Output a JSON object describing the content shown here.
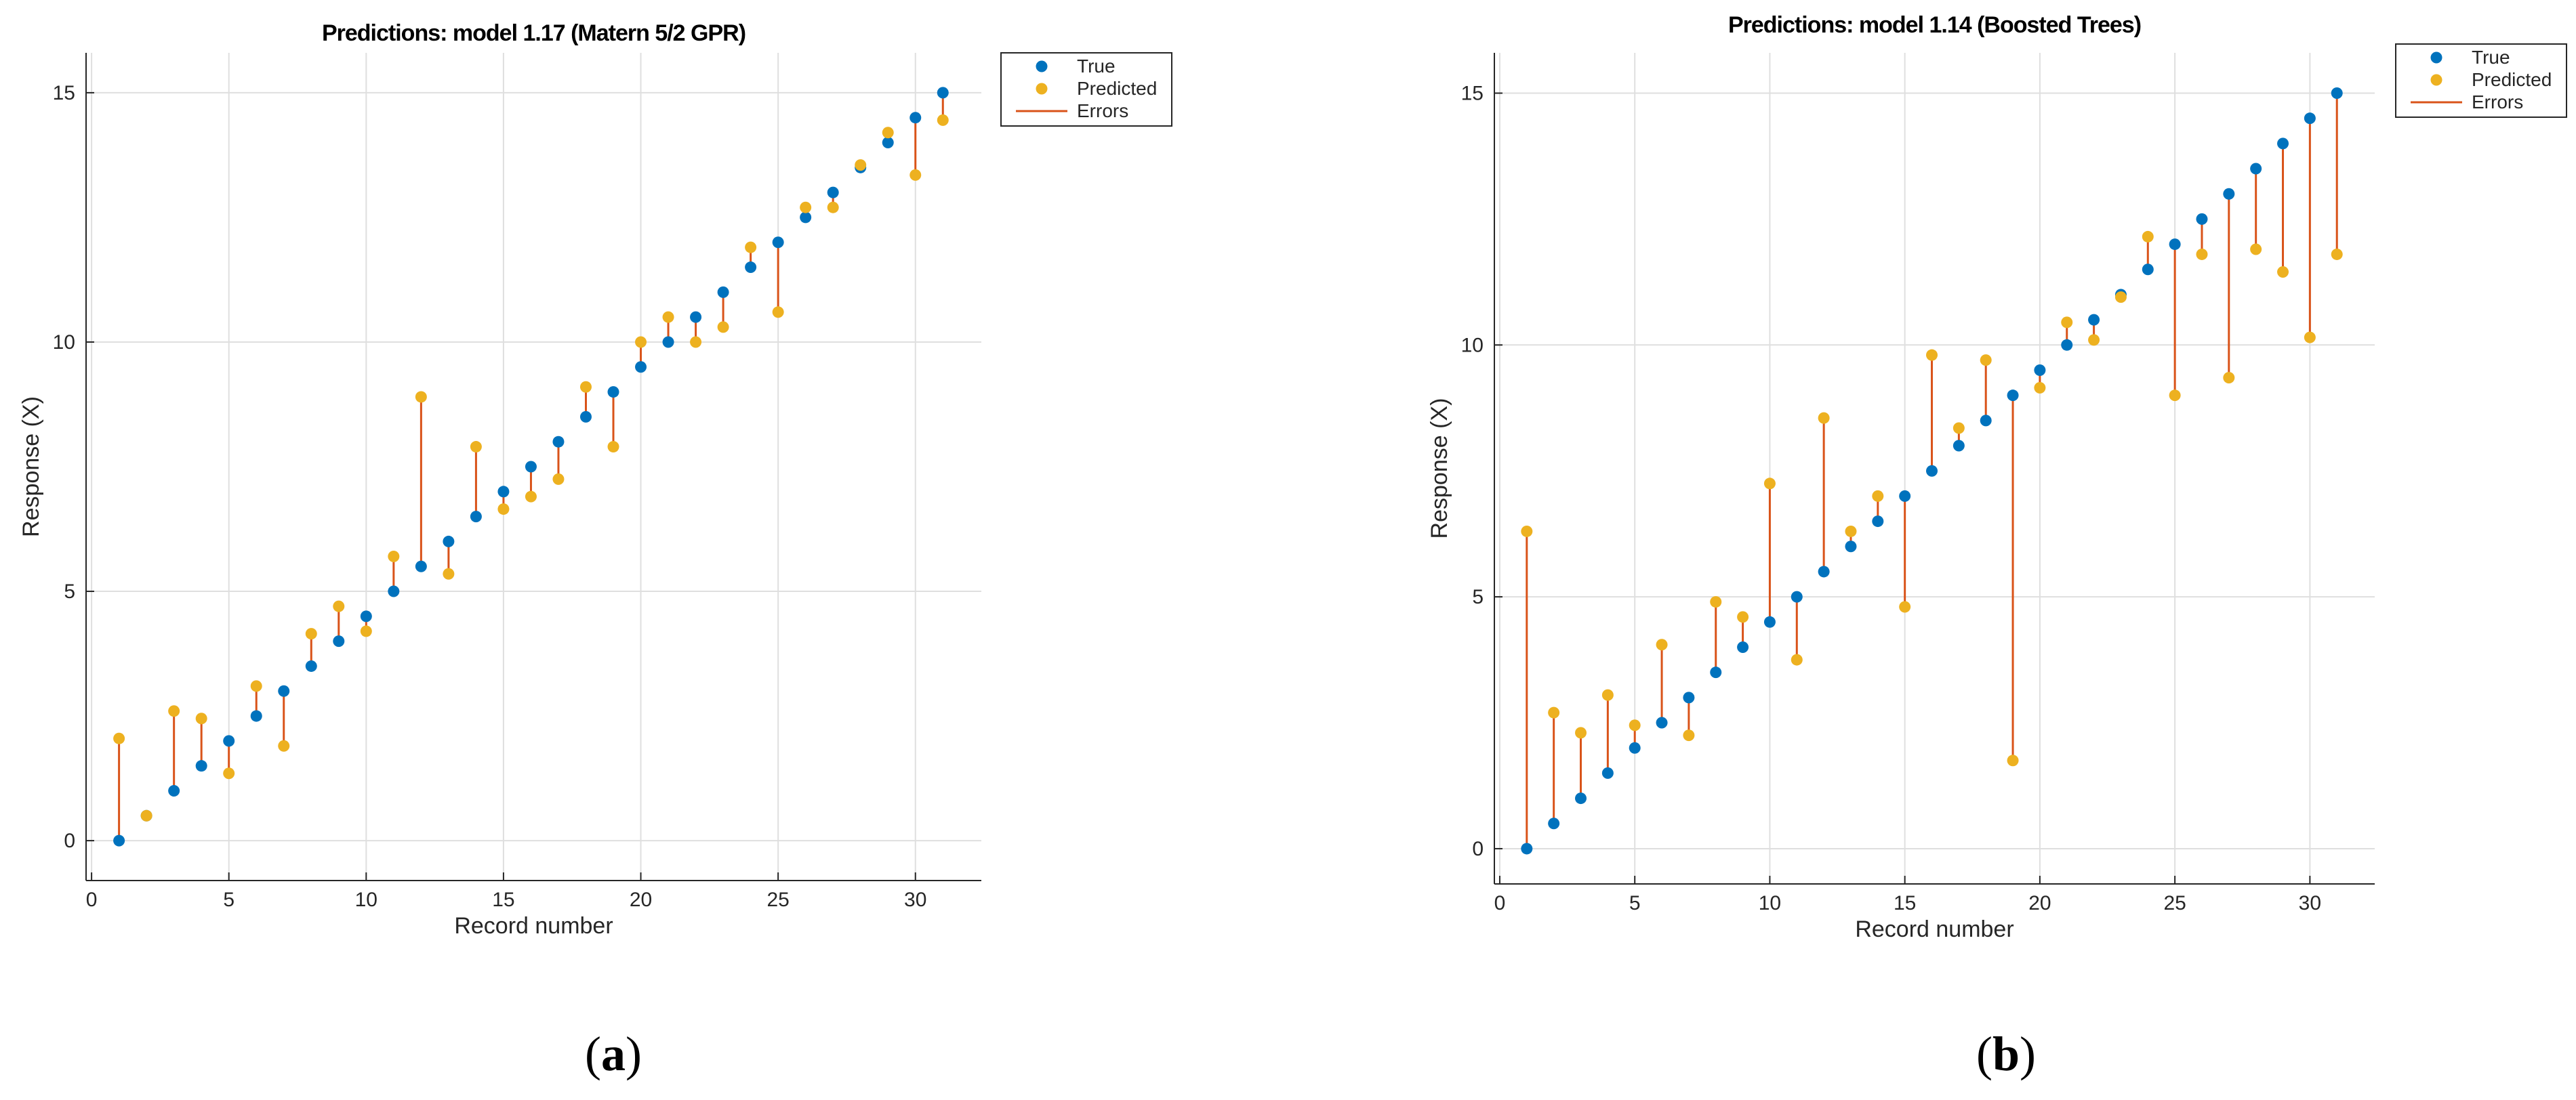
{
  "chart_data": [
    {
      "type": "scatter",
      "panel_label": "a",
      "title": "Predictions: model 1.17 (Matern 5/2 GPR)",
      "xlabel": "Record number",
      "ylabel": "Response (X)",
      "xlim": [
        -0.2,
        32.4
      ],
      "ylim": [
        -0.8,
        15.8
      ],
      "xticks": [
        0,
        5,
        10,
        15,
        20,
        25,
        30
      ],
      "yticks": [
        0,
        5,
        10,
        15
      ],
      "grid": true,
      "legend": {
        "position": "top-right-outside",
        "entries": [
          "True",
          "Predicted",
          "Errors"
        ]
      },
      "colors": {
        "true": "#0072BD",
        "predicted": "#EDB120",
        "errors": "#D95319"
      },
      "x": [
        1,
        2,
        3,
        4,
        5,
        6,
        7,
        8,
        9,
        10,
        11,
        12,
        13,
        14,
        15,
        16,
        17,
        18,
        19,
        20,
        21,
        22,
        23,
        24,
        25,
        26,
        27,
        28,
        29,
        30,
        31
      ],
      "series": [
        {
          "name": "True",
          "values": [
            0,
            0.5,
            1,
            1.5,
            2,
            2.5,
            3,
            3.5,
            4,
            4.5,
            5,
            5.5,
            6,
            6.5,
            7,
            7.5,
            8,
            8.5,
            9,
            9.5,
            10,
            10.5,
            11,
            11.5,
            12,
            12.5,
            13,
            13.5,
            14,
            14.5,
            15
          ]
        },
        {
          "name": "Predicted",
          "values": [
            2.05,
            0.5,
            2.6,
            2.45,
            1.35,
            3.1,
            1.9,
            4.15,
            4.7,
            4.2,
            5.7,
            8.9,
            5.35,
            7.9,
            6.65,
            6.9,
            7.25,
            9.1,
            7.9,
            10.0,
            10.5,
            10.0,
            10.3,
            11.9,
            10.6,
            12.7,
            12.7,
            13.55,
            14.2,
            13.35,
            14.45
          ]
        }
      ]
    },
    {
      "type": "scatter",
      "panel_label": "b",
      "title": "Predictions: model 1.14 (Boosted Trees)",
      "xlabel": "Record number",
      "ylabel": "Response (X)",
      "xlim": [
        -0.2,
        32.4
      ],
      "ylim": [
        -0.7,
        15.8
      ],
      "xticks": [
        0,
        5,
        10,
        15,
        20,
        25,
        30
      ],
      "yticks": [
        0,
        5,
        10,
        15
      ],
      "grid": true,
      "legend": {
        "position": "top-right-outside",
        "entries": [
          "True",
          "Predicted",
          "Errors"
        ]
      },
      "colors": {
        "true": "#0072BD",
        "predicted": "#EDB120",
        "errors": "#D95319"
      },
      "x": [
        1,
        2,
        3,
        4,
        5,
        6,
        7,
        8,
        9,
        10,
        11,
        12,
        13,
        14,
        15,
        16,
        17,
        18,
        19,
        20,
        21,
        22,
        23,
        24,
        25,
        26,
        27,
        28,
        29,
        30,
        31
      ],
      "series": [
        {
          "name": "True",
          "values": [
            0,
            0.5,
            1,
            1.5,
            2,
            2.5,
            3,
            3.5,
            4,
            4.5,
            5,
            5.5,
            6,
            6.5,
            7,
            7.5,
            8,
            8.5,
            9,
            9.5,
            10,
            10.5,
            11,
            11.5,
            12,
            12.5,
            13,
            13.5,
            14,
            14.5,
            15
          ]
        },
        {
          "name": "Predicted",
          "values": [
            6.3,
            2.7,
            2.3,
            3.05,
            2.45,
            4.05,
            2.25,
            4.9,
            4.6,
            7.25,
            3.75,
            8.55,
            6.3,
            7.0,
            4.8,
            9.8,
            8.35,
            9.7,
            1.75,
            9.15,
            10.45,
            10.1,
            10.95,
            12.15,
            9.0,
            11.8,
            9.35,
            11.9,
            11.45,
            10.15,
            11.8
          ]
        }
      ]
    }
  ]
}
